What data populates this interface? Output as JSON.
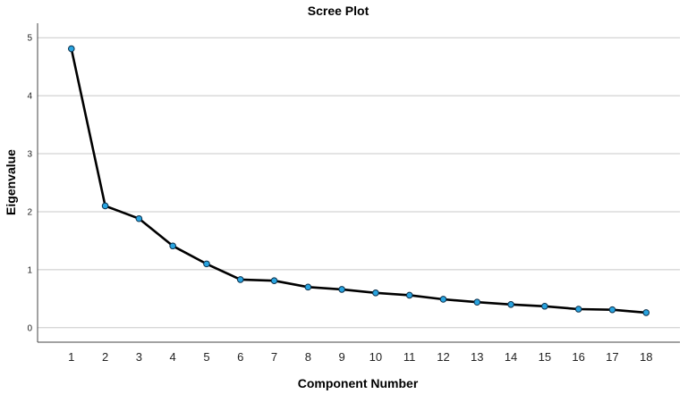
{
  "chart_data": {
    "type": "line",
    "title": "Scree Plot",
    "xlabel": "Component Number",
    "ylabel": "Eigenvalue",
    "x": [
      1,
      2,
      3,
      4,
      5,
      6,
      7,
      8,
      9,
      10,
      11,
      12,
      13,
      14,
      15,
      16,
      17,
      18
    ],
    "series": [
      {
        "values": [
          4.81,
          2.1,
          1.88,
          1.41,
          1.1,
          0.83,
          0.81,
          0.7,
          0.66,
          0.6,
          0.56,
          0.49,
          0.44,
          0.4,
          0.37,
          0.32,
          0.31,
          0.26
        ]
      }
    ],
    "x_ticks": [
      "1",
      "2",
      "3",
      "4",
      "5",
      "6",
      "7",
      "8",
      "9",
      "10",
      "11",
      "12",
      "13",
      "14",
      "15",
      "16",
      "17",
      "18"
    ],
    "y_ticks": [
      "0",
      "1",
      "2",
      "3",
      "4",
      "5"
    ],
    "xlim": [
      0,
      19
    ],
    "ylim": [
      -0.25,
      5.25
    ],
    "grid": "horizontal",
    "colors": {
      "line": "#000000",
      "marker_fill": "#29a4e0",
      "marker_edge": "#0a2f4a",
      "grid": "#c8c8c8",
      "axis": "#444444"
    }
  }
}
